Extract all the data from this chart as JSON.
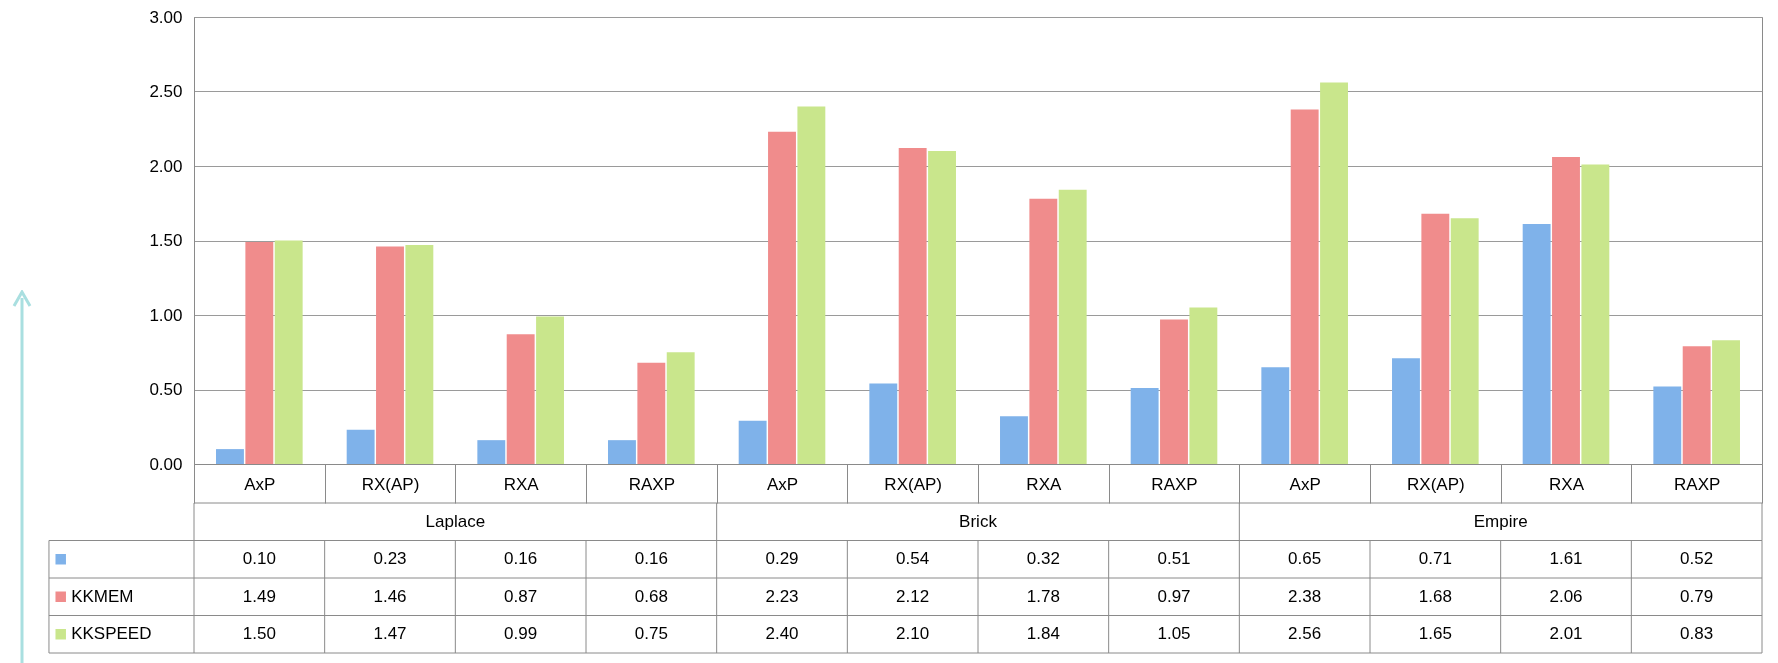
{
  "chart_data": {
    "type": "bar",
    "categories": [
      "AxP",
      "RX(AP)",
      "RXA",
      "RAXP",
      "AxP",
      "RX(AP)",
      "RXA",
      "RAXP",
      "AxP",
      "RX(AP)",
      "RXA",
      "RAXP"
    ],
    "annotations": [
      "Laplace",
      "Brick",
      "Empire"
    ],
    "series": [
      {
        "color": "#7fb2ea",
        "values": [
          0.1,
          0.23,
          0.16,
          0.16,
          0.29,
          0.54,
          0.32,
          0.51,
          0.65,
          0.71,
          1.61,
          0.52
        ],
        "value_labels": [
          "0.10",
          "0.23",
          "0.16",
          "0.16",
          "0.29",
          "0.54",
          "0.32",
          "0.51",
          "0.65",
          "0.71",
          "1.61",
          "0.52"
        ]
      },
      {
        "name": "KKMEM",
        "color": "#f08c8c",
        "values": [
          1.49,
          1.46,
          0.87,
          0.68,
          2.23,
          2.12,
          1.78,
          0.97,
          2.38,
          1.68,
          2.06,
          0.79
        ],
        "value_labels": [
          "1.49",
          "1.46",
          "0.87",
          "0.68",
          "2.23",
          "2.12",
          "1.78",
          "0.97",
          "2.38",
          "1.68",
          "2.06",
          "0.79"
        ]
      },
      {
        "name": "KKSPEED",
        "color": "#c9e68c",
        "values": [
          1.5,
          1.47,
          0.99,
          0.75,
          2.4,
          2.1,
          1.84,
          1.05,
          2.56,
          1.65,
          2.01,
          0.83
        ],
        "value_labels": [
          "1.50",
          "1.47",
          "0.99",
          "0.75",
          "2.40",
          "2.10",
          "1.84",
          "1.05",
          "2.56",
          "1.65",
          "2.01",
          "0.83"
        ]
      }
    ],
    "ylim": [
      0,
      3
    ],
    "yticks": [
      {
        "value": 0,
        "label": "0.00"
      },
      {
        "value": 0.5,
        "label": "0.50"
      },
      {
        "value": 1,
        "label": "1.00"
      },
      {
        "value": 1.5,
        "label": "1.50"
      },
      {
        "value": 2,
        "label": "2.00"
      },
      {
        "value": 2.5,
        "label": "2.50"
      },
      {
        "value": 3,
        "label": "3.00"
      }
    ],
    "grid": "y",
    "legend": "bottom left"
  }
}
